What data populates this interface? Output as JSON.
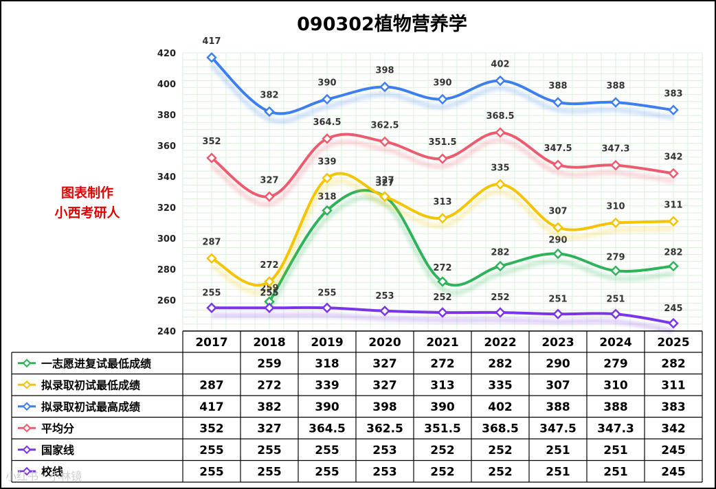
{
  "chart_data": {
    "type": "line",
    "title": "090302植物营养学",
    "annotation": "图表制作\n小西考研人",
    "watermark": "小红书 · 小林镜",
    "categories": [
      "2017",
      "2018",
      "2019",
      "2020",
      "2021",
      "2022",
      "2023",
      "2024",
      "2025"
    ],
    "ylim": [
      240,
      420
    ],
    "yticks": [
      240,
      260,
      280,
      300,
      320,
      340,
      360,
      380,
      400,
      420
    ],
    "grid": true,
    "series": [
      {
        "name": "一志愿进复试最低成绩",
        "color": "#2fb35a",
        "values": [
          null,
          259,
          318,
          327,
          272,
          282,
          290,
          279,
          282
        ],
        "table_values": [
          "",
          "259",
          "318",
          "327",
          "272",
          "282",
          "290",
          "279",
          "282"
        ]
      },
      {
        "name": "拟录取初试最低成绩",
        "color": "#f5c400",
        "values": [
          287,
          272,
          339,
          327,
          313,
          335,
          307,
          310,
          311
        ],
        "table_values": [
          "287",
          "272",
          "339",
          "327",
          "313",
          "335",
          "307",
          "310",
          "311"
        ]
      },
      {
        "name": "拟录取初试最高成绩",
        "color": "#3d7ff0",
        "values": [
          417,
          382,
          390,
          398,
          390,
          402,
          388,
          388,
          383
        ],
        "table_values": [
          "417",
          "382",
          "390",
          "398",
          "390",
          "402",
          "388",
          "388",
          "383"
        ]
      },
      {
        "name": "平均分",
        "color": "#ee5a6e",
        "values": [
          352,
          327,
          364.5,
          362.5,
          351.5,
          368.5,
          347.5,
          347.3,
          342
        ],
        "table_values": [
          "352",
          "327",
          "364.5",
          "362.5",
          "351.5",
          "368.5",
          "347.5",
          "347.3",
          "342"
        ]
      },
      {
        "name": "国家线",
        "color": "#7a35e8",
        "values": [
          255,
          255,
          255,
          253,
          252,
          252,
          251,
          251,
          245
        ],
        "table_values": [
          "255",
          "255",
          "255",
          "253",
          "252",
          "252",
          "251",
          "251",
          "245"
        ]
      },
      {
        "name": "校线",
        "color": "#7a35e8",
        "values": [
          255,
          255,
          255,
          253,
          252,
          252,
          251,
          251,
          245
        ],
        "table_values": [
          "255",
          "255",
          "255",
          "253",
          "252",
          "252",
          "251",
          "251",
          "245"
        ]
      }
    ]
  }
}
